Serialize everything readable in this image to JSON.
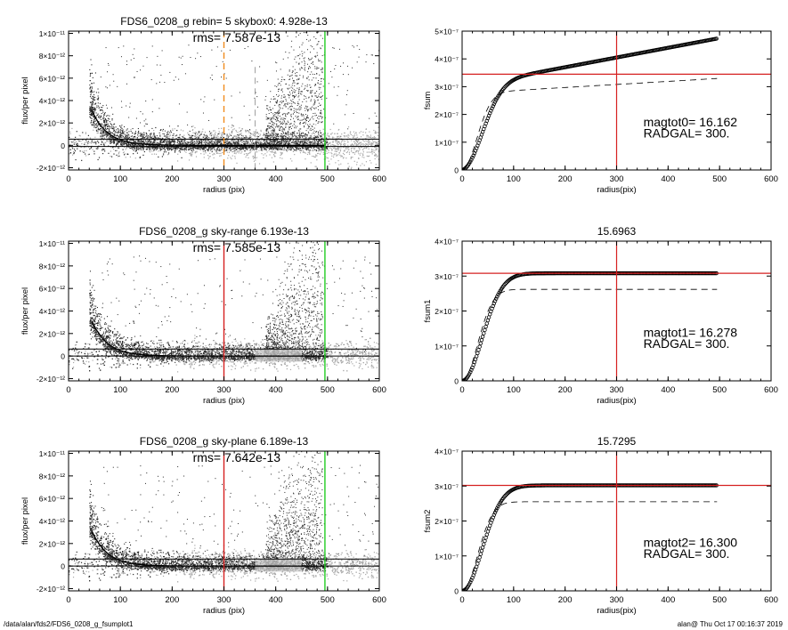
{
  "footer": {
    "path": "/data/alan/fds2/FDS6_0208_g_fsumplot1",
    "stamp": "alan@  Thu Oct 17 00:16:37 2019"
  },
  "colors": {
    "points_dark": "#2a2a2a",
    "points_light": "#a8a8a8",
    "profile": "#000000",
    "vline_orange": "#f08c1e",
    "vline_red": "#d62020",
    "vline_green": "#22cc22",
    "crosshair": "#d62020"
  },
  "chart_data": [
    {
      "type": "scatter",
      "title": "FDS6_0208_g rebin= 5    skybox0:  4.928e-13",
      "annotation": "rms= 7.587e-13",
      "xlabel": "radius (pix)",
      "ylabel": "flux/per pixel",
      "xlim": [
        0,
        600
      ],
      "ylim": [
        -2.2e-12,
        1.02e-11
      ],
      "xticks": [
        0,
        100,
        200,
        300,
        400,
        500,
        600
      ],
      "xticklabels": [
        "0",
        "100",
        "200",
        "300",
        "400",
        "500",
        "600"
      ],
      "yticks": [
        -2e-12,
        0,
        2e-12,
        4e-12,
        6e-12,
        8e-12,
        1e-11
      ],
      "yticklabels": [
        "-2×10⁻¹²",
        "0",
        "2×10⁻¹²",
        "4×10⁻¹²",
        "6×10⁻¹²",
        "8×10⁻¹²",
        "1×10⁻¹¹"
      ],
      "profile": {
        "amplitude": 1.4e-11,
        "scale": 30,
        "x_start": 45,
        "x_end": 495
      },
      "hlines": [
        5.5e-13,
        -1e-13
      ],
      "vlines": [
        {
          "x": 300,
          "color": "orange",
          "style": "dashed"
        },
        {
          "x": 360,
          "color": "gray",
          "style": "dashed",
          "ymin": 7e-12
        },
        {
          "x": 495,
          "color": "green",
          "style": "solid"
        }
      ],
      "sky_box": "vertical-streaks"
    },
    {
      "type": "line",
      "title": "",
      "ylabel": "fsum",
      "xlabel": "radius(pix)",
      "xlim": [
        0,
        600
      ],
      "ylim": [
        0,
        5e-07
      ],
      "xticks": [
        0,
        100,
        200,
        300,
        400,
        500,
        600
      ],
      "xticklabels": [
        "0",
        "100",
        "200",
        "300",
        "400",
        "500",
        "600"
      ],
      "yticks": [
        0,
        1e-07,
        2e-07,
        3e-07,
        4e-07,
        5e-07
      ],
      "yticklabels": [
        "0",
        "1×10⁻⁷",
        "2×10⁻⁷",
        "3×10⁻⁷",
        "4×10⁻⁷",
        "5×10⁻⁷"
      ],
      "crosshair": {
        "x": 300,
        "y": 3.45e-07
      },
      "growth": {
        "A": 3e-07,
        "S": 5.5e-08,
        "B": 3.5e-10,
        "x_end": 495
      },
      "dashed_growth": {
        "A": 2.75e-07,
        "S": 4e-08,
        "B": 1.1e-10,
        "x_end": 495
      },
      "annotation_lines": [
        "magtot0=  16.162",
        "RADGAL=    300."
      ]
    },
    {
      "type": "scatter",
      "title": "FDS6_0208_g sky-range  6.193e-13",
      "annotation": "rms= 7.585e-13",
      "xlabel": "radius (pix)",
      "ylabel": "flux/per pixel",
      "xlim": [
        0,
        600
      ],
      "ylim": [
        -2.2e-12,
        1.02e-11
      ],
      "xticks": [
        0,
        100,
        200,
        300,
        400,
        500,
        600
      ],
      "xticklabels": [
        "0",
        "100",
        "200",
        "300",
        "400",
        "500",
        "600"
      ],
      "yticks": [
        -2e-12,
        0,
        2e-12,
        4e-12,
        6e-12,
        8e-12,
        1e-11
      ],
      "yticklabels": [
        "-2×10⁻¹²",
        "0",
        "2×10⁻¹²",
        "4×10⁻¹²",
        "6×10⁻¹²",
        "8×10⁻¹²",
        "1×10⁻¹¹"
      ],
      "profile": {
        "amplitude": 1.4e-11,
        "scale": 30,
        "x_start": 45,
        "x_end": 495
      },
      "hlines": [
        6.2e-13,
        0
      ],
      "vlines": [
        {
          "x": 300,
          "color": "red",
          "style": "solid"
        },
        {
          "x": 495,
          "color": "green",
          "style": "solid"
        }
      ],
      "sky_box": "light-band"
    },
    {
      "type": "line",
      "title": "15.6963",
      "ylabel": "fsum1",
      "xlabel": "radius(pix)",
      "xlim": [
        0,
        600
      ],
      "ylim": [
        0,
        4e-07
      ],
      "xticks": [
        0,
        100,
        200,
        300,
        400,
        500,
        600
      ],
      "xticklabels": [
        "0",
        "100",
        "200",
        "300",
        "400",
        "500",
        "600"
      ],
      "yticks": [
        0,
        1e-07,
        2e-07,
        3e-07,
        4e-07
      ],
      "yticklabels": [
        "0",
        "1×10⁻⁷",
        "2×10⁻⁷",
        "3×10⁻⁷",
        "4×10⁻⁷"
      ],
      "crosshair": {
        "x": 300,
        "y": 3.08e-07
      },
      "growth": {
        "A": 3.08e-07,
        "S": 5.5e-08,
        "B": 0,
        "x_end": 495
      },
      "dashed_growth": {
        "A": 2.62e-07,
        "S": 4.2e-08,
        "B": 0,
        "x_end": 495
      },
      "annotation_lines": [
        "magtot1=  16.278",
        "RADGAL=    300."
      ]
    },
    {
      "type": "scatter",
      "title": "FDS6_0208_g sky-plane  6.189e-13",
      "annotation": "rms= 7.642e-13",
      "xlabel": "radius (pix)",
      "ylabel": "flux/per pixel",
      "xlim": [
        0,
        600
      ],
      "ylim": [
        -2.2e-12,
        1.02e-11
      ],
      "xticks": [
        0,
        100,
        200,
        300,
        400,
        500,
        600
      ],
      "xticklabels": [
        "0",
        "100",
        "200",
        "300",
        "400",
        "500",
        "600"
      ],
      "yticks": [
        -2e-12,
        0,
        2e-12,
        4e-12,
        6e-12,
        8e-12,
        1e-11
      ],
      "yticklabels": [
        "-2×10⁻¹²",
        "0",
        "2×10⁻¹²",
        "4×10⁻¹²",
        "6×10⁻¹²",
        "8×10⁻¹²",
        "1×10⁻¹¹"
      ],
      "profile": {
        "amplitude": 1.4e-11,
        "scale": 30,
        "x_start": 45,
        "x_end": 495
      },
      "hlines": [
        6.2e-13,
        0
      ],
      "vlines": [
        {
          "x": 300,
          "color": "red",
          "style": "solid"
        },
        {
          "x": 495,
          "color": "green",
          "style": "solid"
        }
      ],
      "sky_box": "light-band"
    },
    {
      "type": "line",
      "title": "15.7295",
      "ylabel": "fsum2",
      "xlabel": "radius(pix)",
      "xlim": [
        0,
        600
      ],
      "ylim": [
        0,
        4e-07
      ],
      "xticks": [
        0,
        100,
        200,
        300,
        400,
        500,
        600
      ],
      "xticklabels": [
        "0",
        "100",
        "200",
        "300",
        "400",
        "500",
        "600"
      ],
      "yticks": [
        0,
        1e-07,
        2e-07,
        3e-07,
        4e-07
      ],
      "yticklabels": [
        "0",
        "1×10⁻⁷",
        "2×10⁻⁷",
        "3×10⁻⁷",
        "4×10⁻⁷"
      ],
      "crosshair": {
        "x": 300,
        "y": 3.02e-07
      },
      "growth": {
        "A": 3.02e-07,
        "S": 5.5e-08,
        "B": 0,
        "x_end": 495
      },
      "dashed_growth": {
        "A": 2.55e-07,
        "S": 4.2e-08,
        "B": 0,
        "x_end": 495
      },
      "annotation_lines": [
        "magtot2=  16.300",
        "RADGAL=    300."
      ]
    }
  ]
}
